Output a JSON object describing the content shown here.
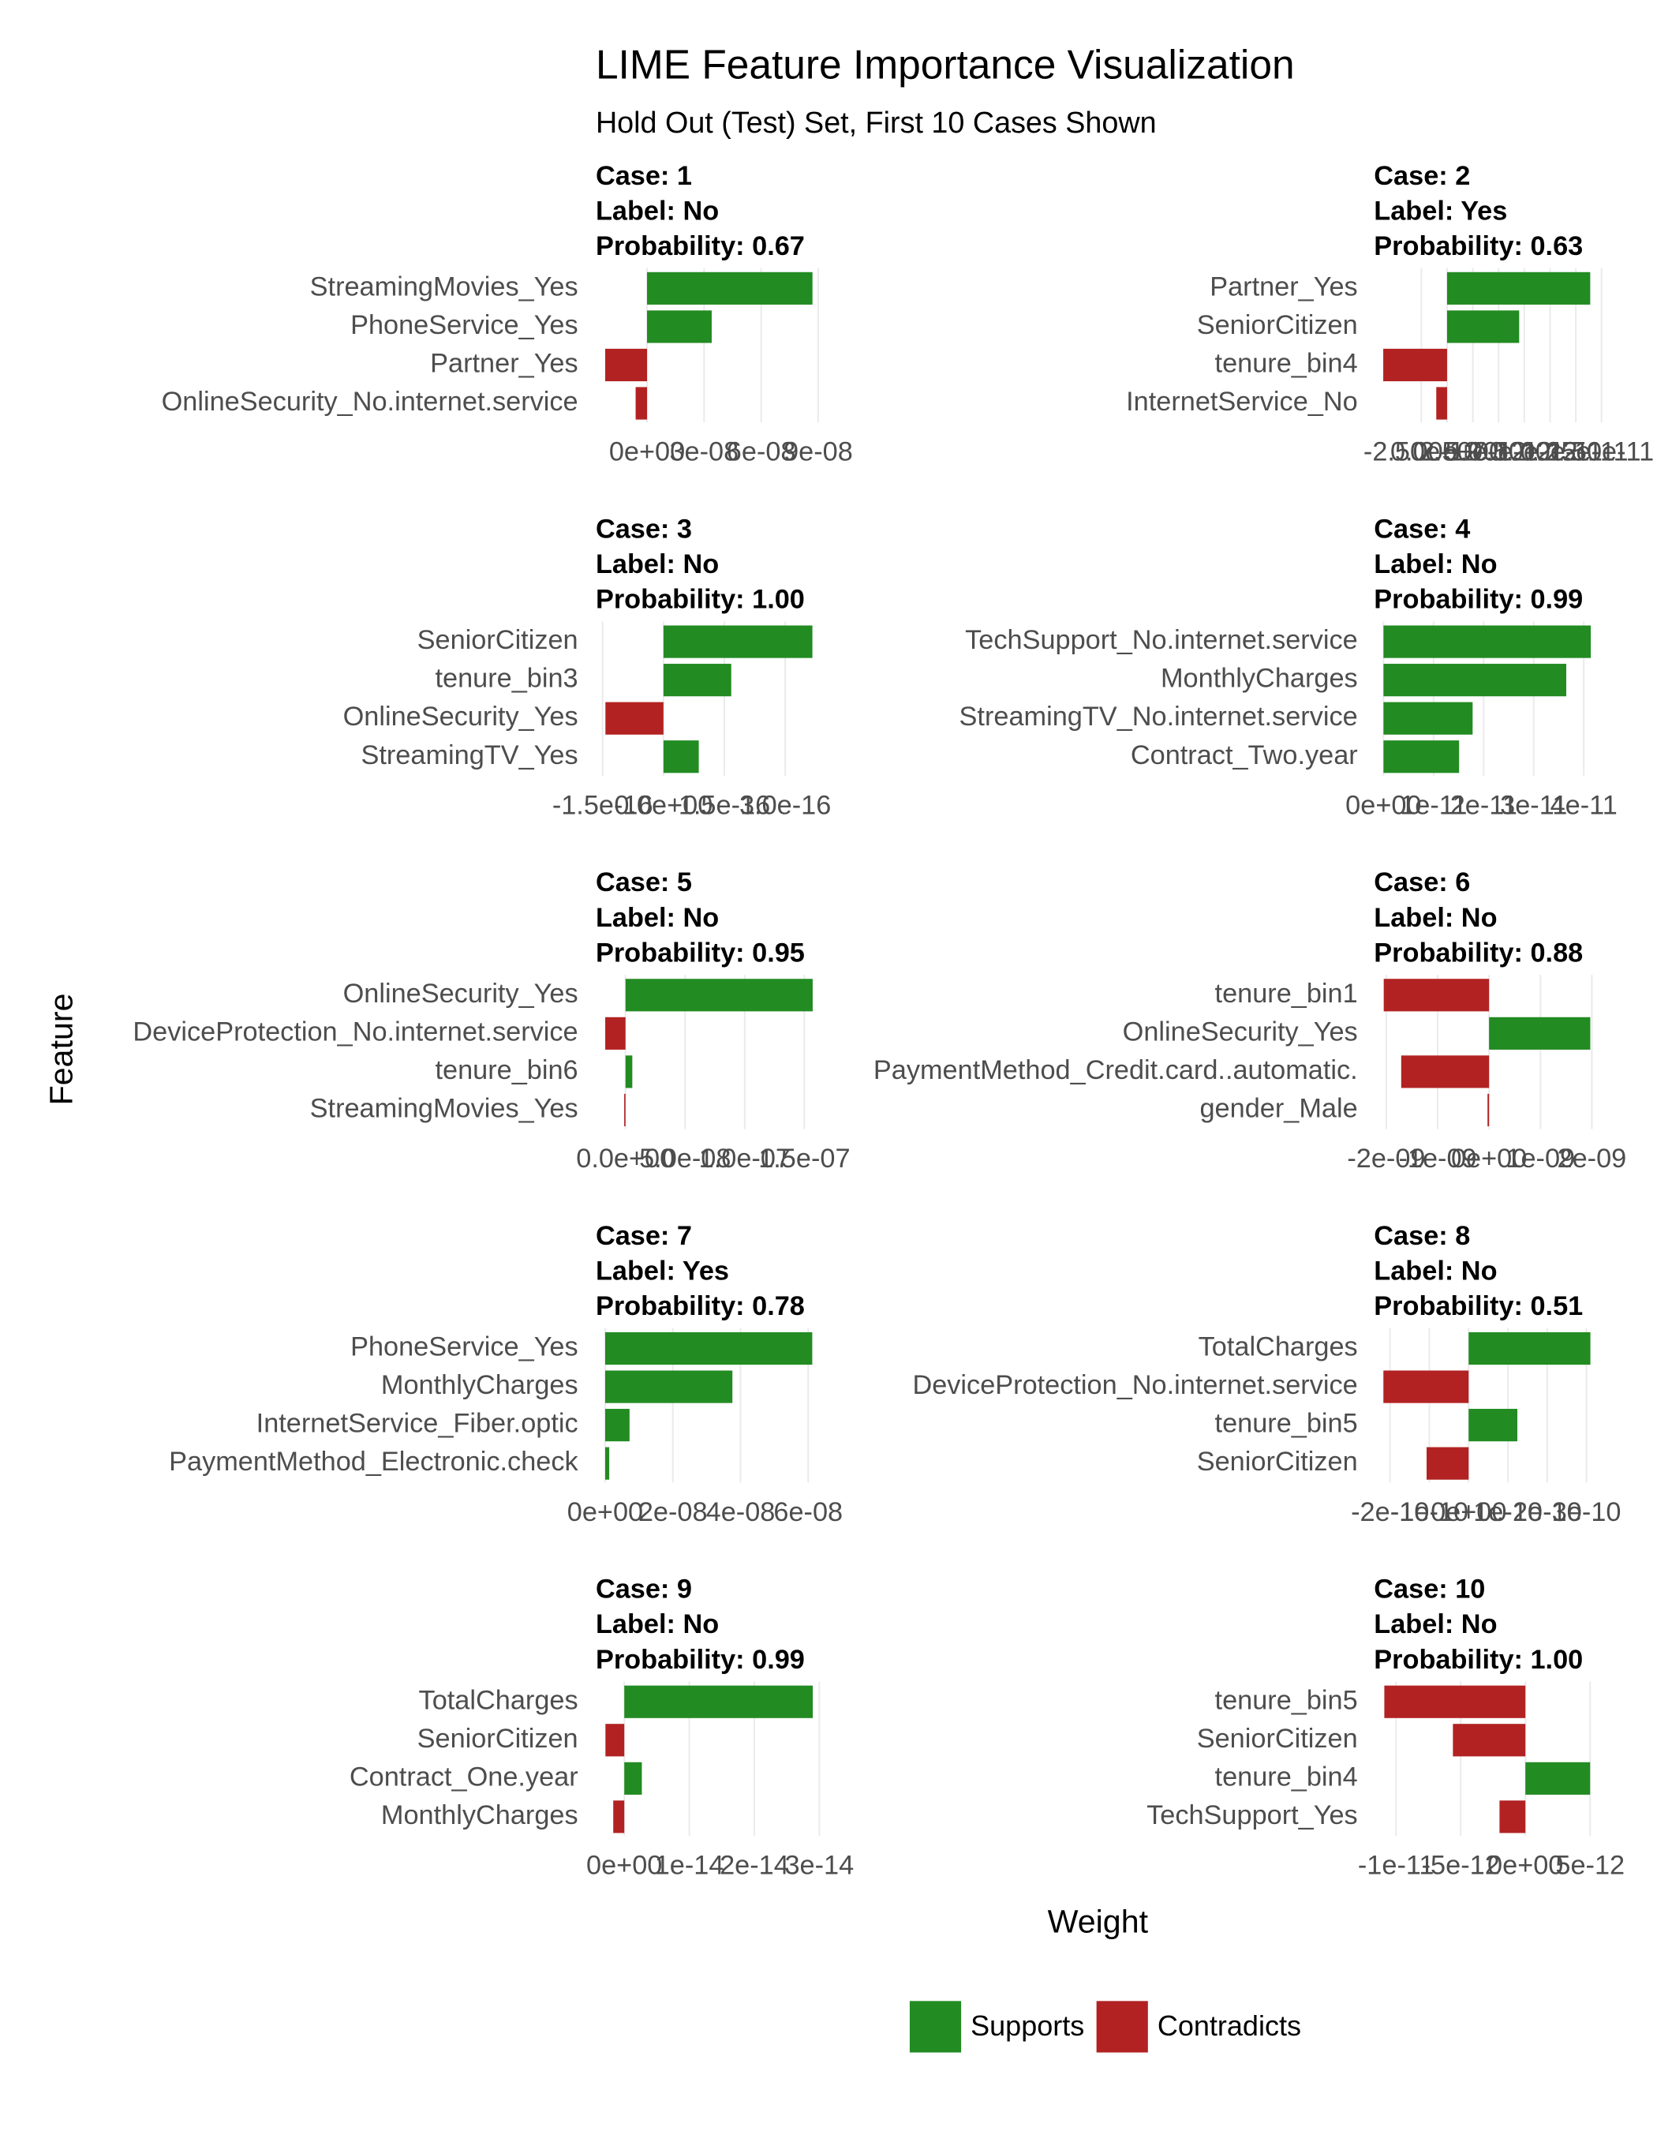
{
  "chart_data": {
    "type": "bar",
    "orientation": "horizontal",
    "title": "LIME Feature Importance Visualization",
    "subtitle": "Hold Out (Test) Set, First 10 Cases Shown",
    "x_label": "Weight",
    "y_label": "Feature",
    "grid": true,
    "legend": [
      {
        "name": "Supports",
        "color": "#228b22"
      },
      {
        "name": "Contradicts",
        "color": "#b22222"
      }
    ],
    "panels": [
      {
        "case": "Case: 1",
        "label": "Label: No",
        "probability": "Probability: 0.67",
        "categories": [
          "StreamingMovies_Yes",
          "PhoneService_Yes",
          "Partner_Yes",
          "OnlineSecurity_No.internet.service"
        ],
        "values": [
          8.7e-08,
          3.4e-08,
          -2.2e-08,
          -6e-09
        ],
        "xlim": [
          -2.7e-08,
          9.4e-08
        ],
        "xticks": [
          {
            "value": 0,
            "label": "0e+00"
          },
          {
            "value": 3e-08,
            "label": "3e-08"
          },
          {
            "value": 6e-08,
            "label": "6e-08"
          },
          {
            "value": 9e-08,
            "label": "9e-08"
          }
        ]
      },
      {
        "case": "Case: 2",
        "label": "Label: Yes",
        "probability": "Probability: 0.63",
        "categories": [
          "Partner_Yes",
          "SeniorCitizen",
          "tenure_bin4",
          "InternetService_No"
        ],
        "values": [
          1.39e-11,
          7e-12,
          -6.2e-12,
          -1.05e-12
        ],
        "xlim": [
          -7.1e-12,
          1.59e-11
        ],
        "xticks": [
          {
            "value": -2.5e-12,
            "label": "-2.50e-12"
          },
          {
            "value": 0,
            "label": "0.00e+00"
          },
          {
            "value": 2.5e-12,
            "label": "2.50e-12"
          },
          {
            "value": 5e-12,
            "label": "5.00e-12"
          },
          {
            "value": 7.5e-12,
            "label": "7.50e-12"
          },
          {
            "value": 1e-11,
            "label": "1.00e-11"
          },
          {
            "value": 1.25e-11,
            "label": "1.25e-11"
          },
          {
            "value": 1.5e-11,
            "label": "1.50e-11"
          }
        ]
      },
      {
        "case": "Case: 3",
        "label": "Label: No",
        "probability": "Probability: 1.00",
        "categories": [
          "SeniorCitizen",
          "tenure_bin3",
          "OnlineSecurity_Yes",
          "StreamingTV_Yes"
        ],
        "values": [
          3.67e-16,
          1.67e-16,
          -1.43e-16,
          8.7e-17
        ],
        "xlim": [
          -1.67e-16,
          4e-16
        ],
        "xticks": [
          {
            "value": -1.5e-16,
            "label": "-1.5e-16"
          },
          {
            "value": 0,
            "label": "0.0e+00"
          },
          {
            "value": 1.5e-16,
            "label": "1.5e-16"
          },
          {
            "value": 3e-16,
            "label": "3.0e-16"
          }
        ]
      },
      {
        "case": "Case: 4",
        "label": "Label: No",
        "probability": "Probability: 0.99",
        "categories": [
          "TechSupport_No.internet.service",
          "MonthlyCharges",
          "StreamingTV_No.internet.service",
          "Contract_Two.year"
        ],
        "values": [
          4.14e-11,
          3.65e-11,
          1.78e-11,
          1.51e-11
        ],
        "xlim": [
          -1.9e-12,
          4.54e-11
        ],
        "xticks": [
          {
            "value": 0,
            "label": "0e+00"
          },
          {
            "value": 1e-11,
            "label": "1e-11"
          },
          {
            "value": 2e-11,
            "label": "2e-11"
          },
          {
            "value": 3e-11,
            "label": "3e-11"
          },
          {
            "value": 4e-11,
            "label": "4e-11"
          }
        ]
      },
      {
        "case": "Case: 5",
        "label": "Label: No",
        "probability": "Probability: 0.95",
        "categories": [
          "OnlineSecurity_Yes",
          "DeviceProtection_No.internet.service",
          "tenure_bin6",
          "StreamingMovies_Yes"
        ],
        "values": [
          1.57e-07,
          -1.7e-08,
          5.7e-09,
          -1.1e-09
        ],
        "xlim": [
          -2.5e-08,
          1.68e-07
        ],
        "xticks": [
          {
            "value": 0,
            "label": "0.0e+00"
          },
          {
            "value": 5e-08,
            "label": "5.0e-08"
          },
          {
            "value": 1e-07,
            "label": "1.0e-07"
          },
          {
            "value": 1.5e-07,
            "label": "1.5e-07"
          }
        ]
      },
      {
        "case": "Case: 6",
        "label": "Label: No",
        "probability": "Probability: 0.88",
        "categories": [
          "tenure_bin1",
          "OnlineSecurity_Yes",
          "PaymentMethod_Credit.card..automatic.",
          "gender_Male"
        ],
        "values": [
          -2.05e-09,
          1.97e-09,
          -1.71e-09,
          -3e-11
        ],
        "xlim": [
          -2.24e-09,
          2.37e-09
        ],
        "xticks": [
          {
            "value": -2e-09,
            "label": "-2e-09"
          },
          {
            "value": -1e-09,
            "label": "-1e-09"
          },
          {
            "value": 0,
            "label": "0e+00"
          },
          {
            "value": 1e-09,
            "label": "1e-09"
          },
          {
            "value": 2e-09,
            "label": "2e-09"
          }
        ]
      },
      {
        "case": "Case: 7",
        "label": "Label: Yes",
        "probability": "Probability: 0.78",
        "categories": [
          "PhoneService_Yes",
          "MonthlyCharges",
          "InternetService_Fiber.optic",
          "PaymentMethod_Electronic.check"
        ],
        "values": [
          6.12e-08,
          3.76e-08,
          7.2e-09,
          1.2e-09
        ],
        "xlim": [
          -2.8e-09,
          6.52e-08
        ],
        "xticks": [
          {
            "value": 0,
            "label": "0e+00"
          },
          {
            "value": 2e-08,
            "label": "2e-08"
          },
          {
            "value": 4e-08,
            "label": "4e-08"
          },
          {
            "value": 6e-08,
            "label": "6e-08"
          }
        ]
      },
      {
        "case": "Case: 8",
        "label": "Label: No",
        "probability": "Probability: 0.51",
        "categories": [
          "TotalCharges",
          "DeviceProtection_No.internet.service",
          "tenure_bin5",
          "SeniorCitizen"
        ],
        "values": [
          3.1e-10,
          -2.17e-10,
          1.24e-10,
          -1.07e-10
        ],
        "xlim": [
          -2.41e-10,
          3.62e-10
        ],
        "xticks": [
          {
            "value": -2e-10,
            "label": "-2e-10"
          },
          {
            "value": -1e-10,
            "label": "-1e-10"
          },
          {
            "value": 0,
            "label": "0e+00"
          },
          {
            "value": 1e-10,
            "label": "1e-10"
          },
          {
            "value": 2e-10,
            "label": "2e-10"
          },
          {
            "value": 3e-10,
            "label": "3e-10"
          }
        ]
      },
      {
        "case": "Case: 9",
        "label": "Label: No",
        "probability": "Probability: 0.99",
        "categories": [
          "TotalCharges",
          "SeniorCitizen",
          "Contract_One.year",
          "MonthlyCharges"
        ],
        "values": [
          2.9e-14,
          -2.9e-15,
          2.7e-15,
          -1.7e-15
        ],
        "xlim": [
          -4.4e-15,
          3.1e-14
        ],
        "xticks": [
          {
            "value": 0,
            "label": "0e+00"
          },
          {
            "value": 1e-14,
            "label": "1e-14"
          },
          {
            "value": 2e-14,
            "label": "2e-14"
          },
          {
            "value": 3e-14,
            "label": "3e-14"
          }
        ]
      },
      {
        "case": "Case: 10",
        "label": "Label: No",
        "probability": "Probability: 1.00",
        "categories": [
          "tenure_bin5",
          "SeniorCitizen",
          "tenure_bin4",
          "TechSupport_Yes"
        ],
        "values": [
          -1.09e-11,
          -5.6e-12,
          5e-12,
          -2e-12
        ],
        "xlim": [
          -1.17e-11,
          6.6e-12
        ],
        "xticks": [
          {
            "value": -1e-11,
            "label": "-1e-11"
          },
          {
            "value": -5e-12,
            "label": "-5e-12"
          },
          {
            "value": 0,
            "label": "0e+00"
          },
          {
            "value": 5e-12,
            "label": "5e-12"
          }
        ]
      }
    ]
  }
}
